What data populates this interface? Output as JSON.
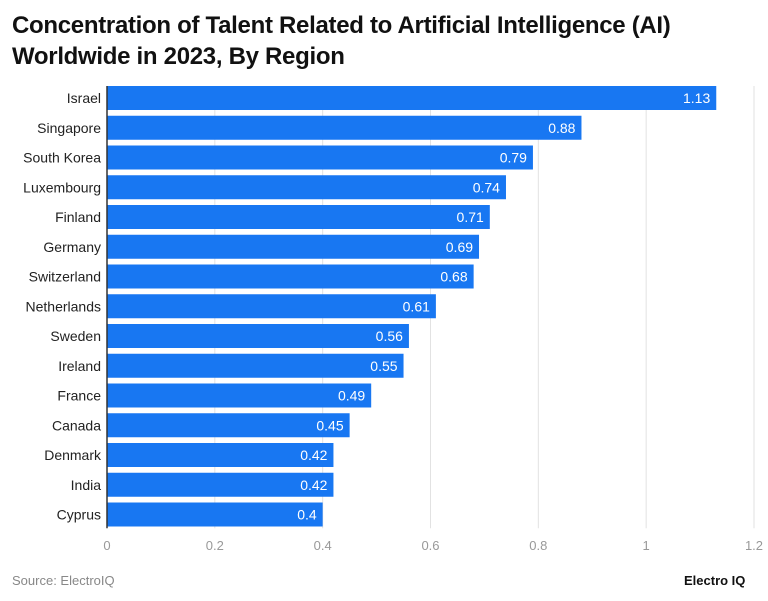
{
  "chart_data": {
    "type": "bar",
    "orientation": "horizontal",
    "title": "Concentration of Talent Related to Artificial Intelligence (AI) Worldwide in 2023, By Region",
    "categories": [
      "Israel",
      "Singapore",
      "South Korea",
      "Luxembourg",
      "Finland",
      "Germany",
      "Switzerland",
      "Netherlands",
      "Sweden",
      "Ireland",
      "France",
      "Canada",
      "Denmark",
      "India",
      "Cyprus"
    ],
    "values": [
      1.13,
      0.88,
      0.79,
      0.74,
      0.71,
      0.69,
      0.68,
      0.61,
      0.56,
      0.55,
      0.49,
      0.45,
      0.42,
      0.42,
      0.4
    ],
    "data_labels": [
      "1.13",
      "0.88",
      "0.79",
      "0.74",
      "0.71",
      "0.69",
      "0.68",
      "0.61",
      "0.56",
      "0.55",
      "0.49",
      "0.45",
      "0.42",
      "0.42",
      "0.4"
    ],
    "xlim": [
      0,
      1.2
    ],
    "xticks": [
      "0",
      "0.2",
      "0.4",
      "0.6",
      "0.8",
      "1",
      "1.2"
    ],
    "xlabel": "",
    "ylabel": "",
    "grid": "vertical",
    "bar_color": "#1877f2",
    "legend": "none"
  },
  "footer": {
    "source": "Source: ElectroIQ",
    "logo": "Electro IQ"
  }
}
